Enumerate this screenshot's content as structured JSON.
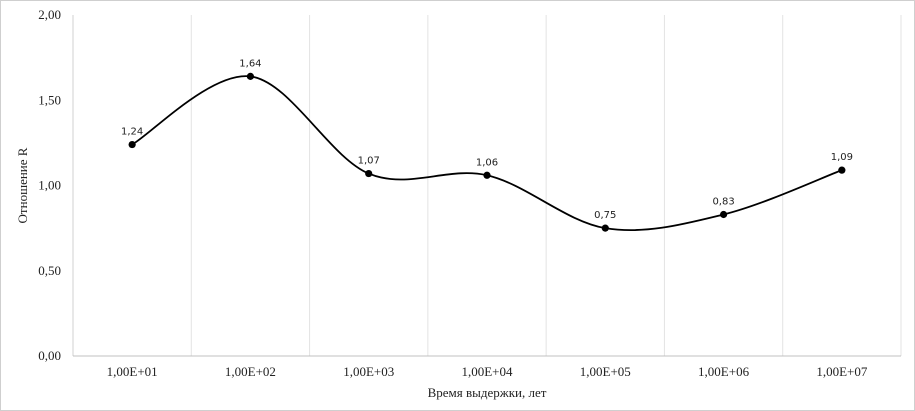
{
  "chart_data": {
    "type": "line",
    "smooth": true,
    "title": "",
    "xlabel": "Время выдержки, лет",
    "ylabel": "Отношение R",
    "categories": [
      "1,00E+01",
      "1,00E+02",
      "1,00E+03",
      "1,00E+04",
      "1,00E+05",
      "1,00E+06",
      "1,00E+07"
    ],
    "series": [
      {
        "values": [
          1.24,
          1.64,
          1.07,
          1.06,
          0.75,
          0.83,
          1.09
        ],
        "data_labels": [
          "1,24",
          "1,64",
          "1,07",
          "1,06",
          "0,75",
          "0,83",
          "1,09"
        ],
        "color": "#000000",
        "marker": "circle"
      }
    ],
    "ylim": [
      0,
      2
    ],
    "yticks": [
      0,
      0.5,
      1,
      1.5,
      2
    ],
    "ytick_labels": [
      "0,00",
      "0,50",
      "1,00",
      "1,50",
      "2,00"
    ],
    "grid": "vertical",
    "legend": "none"
  }
}
